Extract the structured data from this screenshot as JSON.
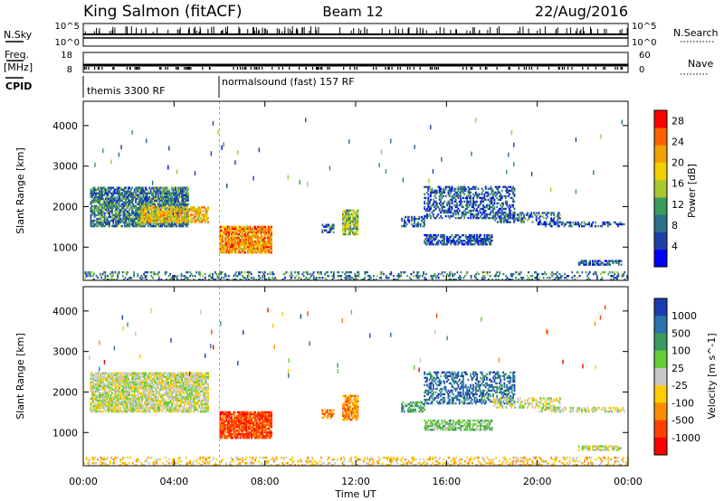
{
  "header": {
    "station": "King Salmon (fitACF)",
    "beam": "Beam 12",
    "date": "22/Aug/2016"
  },
  "noise_panel": {
    "left_label": "N.Sky",
    "right_label": "N.Search",
    "left_ticks": [
      "10^5",
      "10^0"
    ],
    "right_ticks": [
      "10^5",
      "10^0"
    ]
  },
  "freq_panel": {
    "left_label_1": "Freq.",
    "left_label_2": "[MHz]",
    "right_label": "Nave",
    "left_ticks": [
      "18",
      "8"
    ],
    "right_ticks": [
      "60",
      "0"
    ]
  },
  "cpid": {
    "label": "CPID",
    "segments": [
      {
        "text": "themis 3300 RF",
        "start_hour": 0
      },
      {
        "text": "normalsound (fast) 157 RF",
        "start_hour": 6
      }
    ]
  },
  "chart_data": [
    {
      "type": "heatmap",
      "quantity": "power",
      "xlabel": "",
      "ylabel": "Slant Range [km]",
      "xlim_hours": [
        0,
        24
      ],
      "ylim": [
        180,
        4600
      ],
      "yticks": [
        1000,
        2000,
        3000,
        4000
      ],
      "colorbar": {
        "label": "Power [dB]",
        "ticks": [
          "4",
          "8",
          "12",
          "16",
          "20",
          "24",
          "28"
        ],
        "tick_values": [
          4,
          8,
          12,
          16,
          20,
          24,
          28
        ],
        "range": [
          0,
          30
        ],
        "colors": [
          "#0000ff",
          "#1f3fa8",
          "#2d6e8a",
          "#3a9a5c",
          "#a8c830",
          "#f0d000",
          "#f0a000",
          "#ff6000",
          "#ff0000"
        ]
      },
      "regions": [
        {
          "t0": 0.3,
          "t1": 4.6,
          "r0": 1500,
          "r1": 2450,
          "value": 9,
          "density": 0.75
        },
        {
          "t0": 2.5,
          "t1": 5.5,
          "r0": 1600,
          "r1": 2000,
          "value": 19,
          "density": 0.7
        },
        {
          "t0": 6.0,
          "t1": 8.3,
          "r0": 850,
          "r1": 1500,
          "value": 22,
          "density": 0.85
        },
        {
          "t0": 10.5,
          "t1": 11.0,
          "r0": 1350,
          "r1": 1550,
          "value": 8,
          "density": 0.6
        },
        {
          "t0": 11.4,
          "t1": 12.1,
          "r0": 1300,
          "r1": 1900,
          "value": 14,
          "density": 0.75
        },
        {
          "t0": 14.0,
          "t1": 15.0,
          "r0": 1500,
          "r1": 1750,
          "value": 8,
          "density": 0.5
        },
        {
          "t0": 15.0,
          "t1": 18.0,
          "r0": 1050,
          "r1": 1300,
          "value": 6,
          "density": 0.6
        },
        {
          "t0": 15.0,
          "t1": 19.0,
          "r0": 1700,
          "r1": 2500,
          "value": 7,
          "density": 0.45
        },
        {
          "t0": 18.0,
          "t1": 21.0,
          "r0": 1600,
          "r1": 1850,
          "value": 8,
          "density": 0.4
        },
        {
          "t0": 20.0,
          "t1": 23.8,
          "r0": 1500,
          "r1": 1620,
          "value": 6,
          "density": 0.45
        },
        {
          "t0": 21.8,
          "t1": 23.7,
          "r0": 550,
          "r1": 680,
          "value": 6,
          "density": 0.6
        },
        {
          "t0": 0.0,
          "t1": 24.0,
          "r0": 180,
          "r1": 400,
          "value": 9,
          "density": 0.28
        }
      ]
    },
    {
      "type": "heatmap",
      "quantity": "velocity",
      "xlabel": "Time UT",
      "ylabel": "Slant Range [km]",
      "xlim_hours": [
        0,
        24
      ],
      "ylim": [
        180,
        4600
      ],
      "yticks": [
        1000,
        2000,
        3000,
        4000
      ],
      "xticks": [
        "00:00",
        "04:00",
        "08:00",
        "12:00",
        "16:00",
        "20:00",
        "00:00"
      ],
      "colorbar": {
        "label": "Velocity [m s^-1]",
        "ticks": [
          "1000",
          "500",
          "100",
          "25",
          "-25",
          "-100",
          "-500",
          "-1000"
        ],
        "colors": [
          "#1a3cb0",
          "#2a72a8",
          "#3a9a5c",
          "#66cc33",
          "#c8c8c8",
          "#ffcc00",
          "#ff8c00",
          "#ff4000",
          "#ff0000"
        ]
      },
      "regions": [
        {
          "t0": 0.3,
          "t1": 5.5,
          "r0": 1500,
          "r1": 2450,
          "band": 4,
          "density": 0.75
        },
        {
          "t0": 6.0,
          "t1": 8.3,
          "r0": 850,
          "r1": 1500,
          "band": 7,
          "density": 0.85
        },
        {
          "t0": 10.5,
          "t1": 11.0,
          "r0": 1350,
          "r1": 1550,
          "band": 6,
          "density": 0.6
        },
        {
          "t0": 11.4,
          "t1": 12.1,
          "r0": 1300,
          "r1": 1900,
          "band": 6,
          "density": 0.75
        },
        {
          "t0": 14.0,
          "t1": 15.0,
          "r0": 1500,
          "r1": 1750,
          "band": 2,
          "density": 0.5
        },
        {
          "t0": 15.0,
          "t1": 18.0,
          "r0": 1050,
          "r1": 1300,
          "band": 3,
          "density": 0.6
        },
        {
          "t0": 15.0,
          "t1": 19.0,
          "r0": 1700,
          "r1": 2500,
          "band": 1,
          "density": 0.45
        },
        {
          "t0": 18.0,
          "t1": 21.0,
          "r0": 1600,
          "r1": 1850,
          "band": 4,
          "density": 0.4
        },
        {
          "t0": 20.0,
          "t1": 23.8,
          "r0": 1500,
          "r1": 1620,
          "band": 4,
          "density": 0.45
        },
        {
          "t0": 21.8,
          "t1": 23.7,
          "r0": 550,
          "r1": 680,
          "band": 4,
          "density": 0.6
        },
        {
          "t0": 0.0,
          "t1": 24.0,
          "r0": 180,
          "r1": 400,
          "band": 5,
          "density": 0.28
        }
      ]
    }
  ]
}
